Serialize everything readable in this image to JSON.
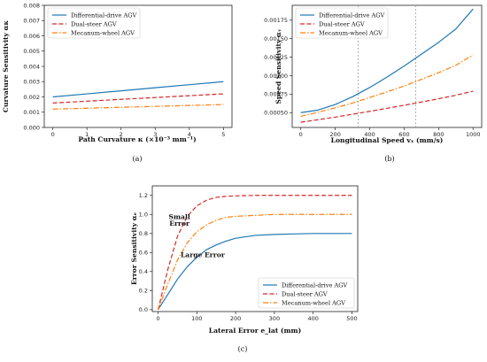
{
  "colors": {
    "differential": "#1f77b4",
    "dual": "#d62728",
    "mecanum": "#ff7f0e",
    "vline": "#9e9e9e"
  },
  "chart_data": [
    {
      "panel_label": "(a)",
      "type": "line",
      "xlabel": "Path Curvature κ (×10⁻³ mm⁻¹)",
      "ylabel": "Curvature Sensitivity ακ",
      "xlim": [
        -0.25,
        5.25
      ],
      "ylim": [
        0,
        0.008
      ],
      "xticks": [
        0,
        1,
        2,
        3,
        4,
        5
      ],
      "xtick_labels": [
        "0",
        "1",
        "2",
        "3",
        "4",
        "5"
      ],
      "yticks": [
        0,
        0.001,
        0.002,
        0.003,
        0.004,
        0.005,
        0.006,
        0.007,
        0.008
      ],
      "ytick_labels": [
        "0.000",
        "0.001",
        "0.002",
        "0.003",
        "0.004",
        "0.005",
        "0.006",
        "0.007",
        "0.008"
      ],
      "legend_position": "top-left",
      "x": [
        0,
        1,
        2,
        3,
        4,
        5
      ],
      "series": [
        {
          "name": "Differential-drive AGV",
          "style": "solid",
          "values": [
            0.002,
            0.0022,
            0.0024,
            0.0026,
            0.0028,
            0.003
          ]
        },
        {
          "name": "Dual-steer AGV",
          "style": "dashed",
          "values": [
            0.0016,
            0.00172,
            0.00184,
            0.00196,
            0.00208,
            0.0022
          ]
        },
        {
          "name": "Mecanum-wheel AGV",
          "style": "dashdot",
          "values": [
            0.0012,
            0.00126,
            0.00132,
            0.00138,
            0.00144,
            0.0015
          ]
        }
      ]
    },
    {
      "panel_label": "(b)",
      "type": "line",
      "xlabel": "Longitudinal Speed vₓ (mm/s)",
      "ylabel": "Speed Sensitivity αᵥ",
      "xlim": [
        -50,
        1050
      ],
      "ylim": [
        0.0003,
        0.00195
      ],
      "xticks": [
        0,
        200,
        400,
        600,
        800,
        1000
      ],
      "xtick_labels": [
        "0",
        "200",
        "400",
        "600",
        "800",
        "1000"
      ],
      "yticks": [
        0.0005,
        0.00075,
        0.001,
        0.00125,
        0.0015,
        0.00175
      ],
      "ytick_labels": [
        "0.00050",
        "0.00075",
        "0.00100",
        "0.00125",
        "0.00150",
        "0.00175"
      ],
      "vlines": [
        333,
        667
      ],
      "legend_position": "top-left",
      "x": [
        0,
        100,
        200,
        300,
        400,
        500,
        600,
        700,
        800,
        900,
        1000
      ],
      "series": [
        {
          "name": "Differential-drive AGV",
          "style": "solid",
          "values": [
            0.0005,
            0.000535,
            0.00061,
            0.000715,
            0.00084,
            0.00098,
            0.00113,
            0.00129,
            0.00145,
            0.00163,
            0.0019
          ]
        },
        {
          "name": "Dual-steer AGV",
          "style": "dashed",
          "values": [
            0.00037,
            0.000405,
            0.00044,
            0.000478,
            0.000518,
            0.000558,
            0.0006,
            0.000643,
            0.000688,
            0.000735,
            0.00079
          ]
        },
        {
          "name": "Mecanum-wheel AGV",
          "style": "dashdot",
          "values": [
            0.00045,
            0.000505,
            0.000565,
            0.00063,
            0.000705,
            0.00078,
            0.00086,
            0.00095,
            0.00104,
            0.00114,
            0.00128
          ]
        }
      ]
    },
    {
      "panel_label": "(c)",
      "type": "line",
      "xlabel": "Lateral Error e_lat (mm)",
      "ylabel": "Error Sensitivity αₑ",
      "xlim": [
        -15,
        515
      ],
      "ylim": [
        -0.02,
        1.3
      ],
      "xticks": [
        0,
        100,
        200,
        300,
        400,
        500
      ],
      "xtick_labels": [
        "0",
        "100",
        "200",
        "300",
        "400",
        "500"
      ],
      "yticks": [
        0,
        0.2,
        0.4,
        0.6,
        0.8,
        1.0,
        1.2
      ],
      "ytick_labels": [
        "0.0",
        "0.2",
        "0.4",
        "0.6",
        "0.8",
        "1.0",
        "1.2"
      ],
      "legend_position": "bottom-right",
      "annotations": [
        {
          "text": "Small",
          "x": 55,
          "y": 0.95
        },
        {
          "text": "Error",
          "x": 55,
          "y": 0.88
        },
        {
          "text": "Large Error",
          "x": 115,
          "y": 0.55
        }
      ],
      "x": [
        0,
        25,
        50,
        75,
        100,
        125,
        150,
        175,
        200,
        250,
        300,
        350,
        400,
        450,
        500
      ],
      "series": [
        {
          "name": "Differential-drive AGV",
          "style": "solid",
          "values": [
            0,
            0.16,
            0.32,
            0.45,
            0.55,
            0.63,
            0.68,
            0.72,
            0.75,
            0.78,
            0.79,
            0.795,
            0.8,
            0.8,
            0.8
          ]
        },
        {
          "name": "Dual-steer AGV",
          "style": "dashed",
          "values": [
            0,
            0.42,
            0.77,
            0.98,
            1.09,
            1.15,
            1.18,
            1.19,
            1.195,
            1.2,
            1.2,
            1.2,
            1.2,
            1.2,
            1.2
          ]
        },
        {
          "name": "Mecanum-wheel AGV",
          "style": "dashdot",
          "values": [
            0,
            0.27,
            0.52,
            0.7,
            0.82,
            0.89,
            0.94,
            0.97,
            0.98,
            0.99,
            1.0,
            1.0,
            1.0,
            1.0,
            1.0
          ]
        }
      ]
    }
  ]
}
